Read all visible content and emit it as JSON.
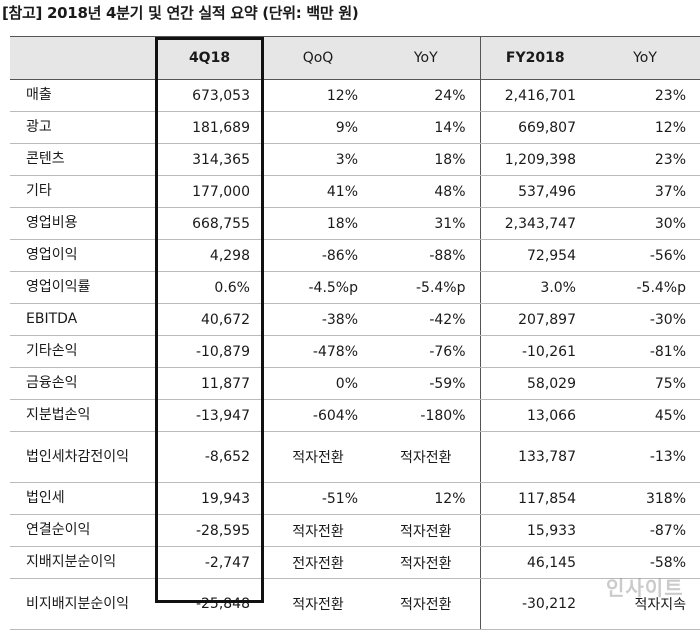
{
  "caption": "[참고] 2018년 4분기 및 연간 실적 요약 (단위: 백만 원)",
  "headers": [
    "",
    "4Q18",
    "QoQ",
    "YoY",
    "FY2018",
    "YoY"
  ],
  "rows": [
    {
      "label": "매출",
      "q4": "673,053",
      "qoq": "12%",
      "yoy": "24%",
      "fy": "2,416,701",
      "fy_yoy": "23%"
    },
    {
      "label": "광고",
      "q4": "181,689",
      "qoq": "9%",
      "yoy": "14%",
      "fy": "669,807",
      "fy_yoy": "12%"
    },
    {
      "label": "콘텐츠",
      "q4": "314,365",
      "qoq": "3%",
      "yoy": "18%",
      "fy": "1,209,398",
      "fy_yoy": "23%"
    },
    {
      "label": "기타",
      "q4": "177,000",
      "qoq": "41%",
      "yoy": "48%",
      "fy": "537,496",
      "fy_yoy": "37%"
    },
    {
      "label": "영업비용",
      "q4": "668,755",
      "qoq": "18%",
      "yoy": "31%",
      "fy": "2,343,747",
      "fy_yoy": "30%"
    },
    {
      "label": "영업이익",
      "q4": "4,298",
      "qoq": "-86%",
      "yoy": "-88%",
      "fy": "72,954",
      "fy_yoy": "-56%"
    },
    {
      "label": "영업이익률",
      "q4": "0.6%",
      "qoq": "-4.5%p",
      "yoy": "-5.4%p",
      "fy": "3.0%",
      "fy_yoy": "-5.4%p"
    },
    {
      "label": "EBITDA",
      "q4": "40,672",
      "qoq": "-38%",
      "yoy": "-42%",
      "fy": "207,897",
      "fy_yoy": "-30%"
    },
    {
      "label": "기타손익",
      "q4": "-10,879",
      "qoq": "-478%",
      "yoy": "-76%",
      "fy": "-10,261",
      "fy_yoy": "-81%"
    },
    {
      "label": "금융손익",
      "q4": "11,877",
      "qoq": "0%",
      "yoy": "-59%",
      "fy": "58,029",
      "fy_yoy": "75%"
    },
    {
      "label": "지분법손익",
      "q4": "-13,947",
      "qoq": "-604%",
      "yoy": "-180%",
      "fy": "13,066",
      "fy_yoy": "45%"
    },
    {
      "label": "법인세차감전이익",
      "q4": "-8,652",
      "qoq": "적자전환",
      "yoy": "적자전환",
      "fy": "133,787",
      "fy_yoy": "-13%"
    },
    {
      "label": "법인세",
      "q4": "19,943",
      "qoq": "-51%",
      "yoy": "12%",
      "fy": "117,854",
      "fy_yoy": "318%"
    },
    {
      "label": "연결순이익",
      "q4": "-28,595",
      "qoq": "적자전환",
      "yoy": "적자전환",
      "fy": "15,933",
      "fy_yoy": "-87%"
    },
    {
      "label": "지배지분순이익",
      "q4": "-2,747",
      "qoq": "전자전환",
      "yoy": "적자전환",
      "fy": "46,145",
      "fy_yoy": "-58%"
    },
    {
      "label": "비지배지분순이익",
      "q4": "-25,848",
      "qoq": "적자전환",
      "yoy": "적자전환",
      "fy": "-30,212",
      "fy_yoy": "적자지속"
    }
  ],
  "watermark": "인사이트"
}
